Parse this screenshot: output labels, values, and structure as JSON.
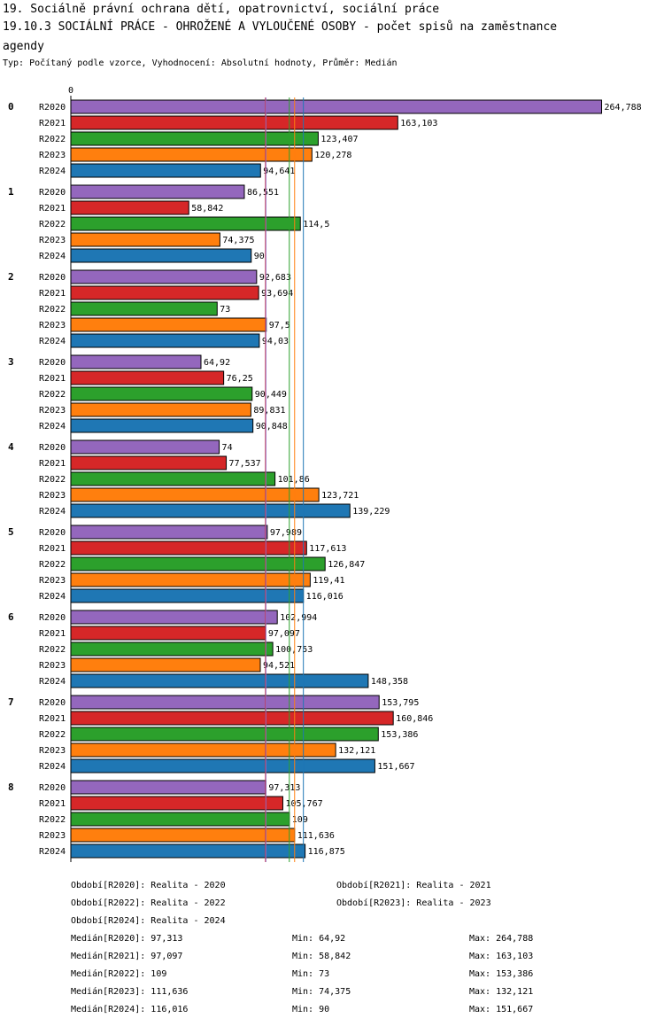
{
  "title_line1": "19. Sociálně právní ochrana dětí, opatrovnictví, sociální práce",
  "title_line2": "19.10.3 SOCIÁLNÍ PRÁCE - OHROŽENÉ A VYLOUČENÉ OSOBY - počet spisů na zaměstnance",
  "title_line3": "agendy",
  "subtitle": "Typ: Počítaný podle vzorce, Vyhodnocení: Absolutní hodnoty, Průměr: Medián",
  "chart_data": {
    "type": "bar",
    "orientation": "horizontal",
    "x_axis_tick": "0",
    "xlim": [
      0,
      265
    ],
    "categories": [
      "0",
      "1",
      "2",
      "3",
      "4",
      "5",
      "6",
      "7",
      "8"
    ],
    "series": [
      {
        "name": "R2020",
        "color": "#9467bd",
        "values": [
          264.788,
          86.551,
          92.683,
          64.92,
          74,
          97.989,
          102.994,
          153.795,
          97.313
        ],
        "labels": [
          "264,788",
          "86,551",
          "92,683",
          "64,92",
          "74",
          "97,989",
          "102,994",
          "153,795",
          "97,313"
        ]
      },
      {
        "name": "R2021",
        "color": "#d62728",
        "values": [
          163.103,
          58.842,
          93.694,
          76.25,
          77.537,
          117.613,
          97.097,
          160.846,
          105.767
        ],
        "labels": [
          "163,103",
          "58,842",
          "93,694",
          "76,25",
          "77,537",
          "117,613",
          "97,097",
          "160,846",
          "105,767"
        ]
      },
      {
        "name": "R2022",
        "color": "#2ca02c",
        "values": [
          123.407,
          114.5,
          73,
          90.449,
          101.86,
          126.847,
          100.753,
          153.386,
          109
        ],
        "labels": [
          "123,407",
          "114,5",
          "73",
          "90,449",
          "101,86",
          "126,847",
          "100,753",
          "153,386",
          "109"
        ]
      },
      {
        "name": "R2023",
        "color": "#ff7f0e",
        "values": [
          120.278,
          74.375,
          97.5,
          89.831,
          123.721,
          119.41,
          94.521,
          132.121,
          111.636
        ],
        "labels": [
          "120,278",
          "74,375",
          "97,5",
          "89,831",
          "123,721",
          "119,41",
          "94,521",
          "132,121",
          "111,636"
        ]
      },
      {
        "name": "R2024",
        "color": "#1f77b4",
        "values": [
          94.641,
          90,
          94.03,
          90.848,
          139.229,
          116.016,
          148.358,
          151.667,
          116.875
        ],
        "labels": [
          "94,641",
          "90",
          "94,03",
          "90,848",
          "139,229",
          "116,016",
          "148,358",
          "151,667",
          "116,875"
        ]
      }
    ],
    "median_lines": [
      {
        "series": "R2021",
        "value": 97.097,
        "color": "#d62728"
      },
      {
        "series": "R2022",
        "value": 109,
        "color": "#2ca02c"
      },
      {
        "series": "R2020",
        "value": 97.313,
        "color": "#9467bd"
      },
      {
        "series": "R2023",
        "value": 111.636,
        "color": "#ff7f0e"
      },
      {
        "series": "R2024",
        "value": 116.016,
        "color": "#1f77b4"
      }
    ]
  },
  "legend": {
    "periods": [
      "Období[R2020]: Realita - 2020",
      "Období[R2021]: Realita - 2021",
      "Období[R2022]: Realita - 2022",
      "Období[R2023]: Realita - 2023",
      "Období[R2024]: Realita - 2024"
    ],
    "stats": [
      {
        "median": "Medián[R2020]: 97,313",
        "min": "Min: 64,92",
        "max": "Max: 264,788"
      },
      {
        "median": "Medián[R2021]: 97,097",
        "min": "Min: 58,842",
        "max": "Max: 163,103"
      },
      {
        "median": "Medián[R2022]: 109",
        "min": "Min: 73",
        "max": "Max: 153,386"
      },
      {
        "median": "Medián[R2023]: 111,636",
        "min": "Min: 74,375",
        "max": "Max: 132,121"
      },
      {
        "median": "Medián[R2024]: 116,016",
        "min": "Min: 90",
        "max": "Max: 151,667"
      }
    ]
  }
}
